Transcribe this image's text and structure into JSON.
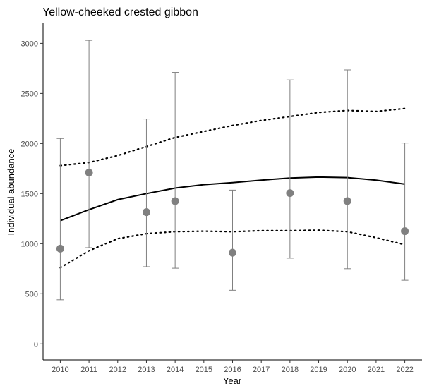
{
  "chart_data": {
    "type": "scatter",
    "title": "Yellow-cheeked crested gibbon",
    "xlabel": "Year",
    "ylabel": "Individual abundance",
    "xlim": [
      2009.4,
      2022.6
    ],
    "ylim": [
      -160,
      3200
    ],
    "x_ticks": [
      2010,
      2011,
      2012,
      2013,
      2014,
      2015,
      2016,
      2017,
      2018,
      2019,
      2020,
      2021,
      2022
    ],
    "y_ticks": [
      0,
      500,
      1000,
      1500,
      2000,
      2500,
      3000
    ],
    "grid": false,
    "colors": {
      "points": "#808080",
      "errorbars": "#808080",
      "trend": "#000000",
      "ci": "#000000",
      "axis": "#000000",
      "tick_text": "#4d4d4d"
    },
    "observations": [
      {
        "x": 2010,
        "y": 950,
        "lower": 440,
        "upper": 2050
      },
      {
        "x": 2011,
        "y": 1710,
        "lower": 960,
        "upper": 3030
      },
      {
        "x": 2013,
        "y": 1315,
        "lower": 770,
        "upper": 2245
      },
      {
        "x": 2014,
        "y": 1425,
        "lower": 755,
        "upper": 2710
      },
      {
        "x": 2016,
        "y": 910,
        "lower": 535,
        "upper": 1535
      },
      {
        "x": 2018,
        "y": 1505,
        "lower": 855,
        "upper": 2635
      },
      {
        "x": 2020,
        "y": 1425,
        "lower": 750,
        "upper": 2735
      },
      {
        "x": 2022,
        "y": 1125,
        "lower": 635,
        "upper": 2005
      }
    ],
    "trend": {
      "x": [
        2010,
        2011,
        2012,
        2013,
        2014,
        2015,
        2016,
        2017,
        2018,
        2019,
        2020,
        2021,
        2022
      ],
      "y": [
        1230,
        1340,
        1440,
        1500,
        1555,
        1590,
        1610,
        1635,
        1655,
        1665,
        1660,
        1635,
        1595
      ]
    },
    "ci_upper": {
      "x": [
        2010,
        2011,
        2012,
        2013,
        2014,
        2015,
        2016,
        2017,
        2018,
        2019,
        2020,
        2021,
        2022
      ],
      "y": [
        1780,
        1810,
        1880,
        1970,
        2060,
        2120,
        2180,
        2230,
        2270,
        2310,
        2330,
        2320,
        2350
      ]
    },
    "ci_lower": {
      "x": [
        2010,
        2011,
        2012,
        2013,
        2014,
        2015,
        2016,
        2017,
        2018,
        2019,
        2020,
        2021,
        2022
      ],
      "y": [
        760,
        930,
        1050,
        1100,
        1120,
        1125,
        1120,
        1130,
        1130,
        1135,
        1120,
        1060,
        990
      ]
    }
  }
}
